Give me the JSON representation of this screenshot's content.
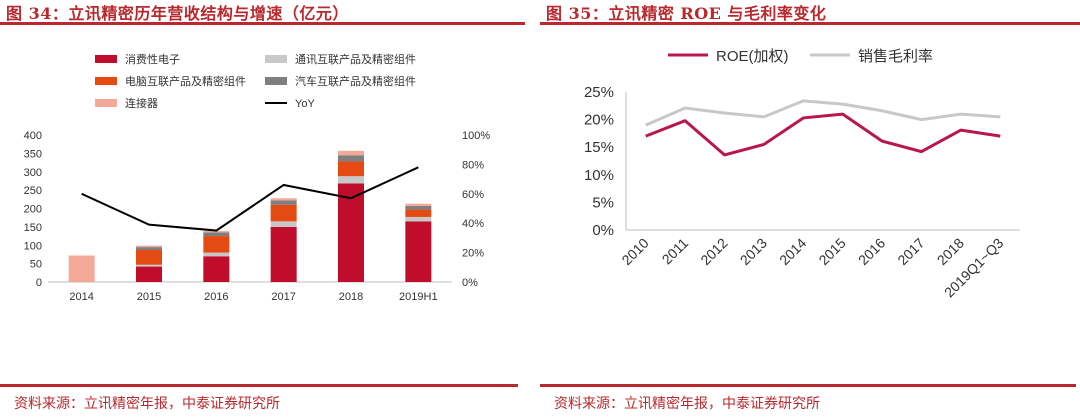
{
  "left": {
    "title": "图 34：立讯精密历年营收结构与增速（亿元）",
    "source": "资料来源：立讯精密年报，中泰证券研究所",
    "chart_data": {
      "type": "bar",
      "stacked": true,
      "categories": [
        "2014",
        "2015",
        "2016",
        "2017",
        "2018",
        "2019H1"
      ],
      "series": [
        {
          "name": "消费性电子",
          "color": "#c00d2b",
          "values": [
            0,
            42,
            70,
            150,
            268,
            165
          ]
        },
        {
          "name": "通讯互联产品及精密组件",
          "color": "#c8c8c8",
          "values": [
            0,
            5,
            10,
            15,
            20,
            12
          ]
        },
        {
          "name": "电脑互联产品及精密组件",
          "color": "#e44a12",
          "values": [
            0,
            40,
            45,
            45,
            40,
            20
          ]
        },
        {
          "name": "汽车互联产品及精密组件",
          "color": "#7f7f7f",
          "values": [
            0,
            8,
            10,
            12,
            17,
            10
          ]
        },
        {
          "name": "连接器",
          "color": "#f4a898",
          "values": [
            72,
            4,
            4,
            6,
            12,
            6
          ]
        }
      ],
      "line": {
        "name": "YoY",
        "color": "#000000",
        "values": [
          60,
          39,
          35,
          66,
          57,
          78
        ]
      },
      "ylim": [
        0,
        400
      ],
      "yticks": [
        "0",
        "50",
        "100",
        "150",
        "200",
        "250",
        "300",
        "350",
        "400"
      ],
      "y2lim": [
        0,
        100
      ],
      "y2ticks": [
        "0%",
        "20%",
        "40%",
        "60%",
        "80%",
        "100%"
      ],
      "legend": "top"
    }
  },
  "right": {
    "title": "图 35：立讯精密 ROE 与毛利率变化",
    "source": "资料来源：立讯精密年报，中泰证券研究所",
    "chart_data": {
      "type": "line",
      "categories": [
        "2010",
        "2011",
        "2012",
        "2013",
        "2014",
        "2015",
        "2016",
        "2017",
        "2018",
        "2019Q1~Q3"
      ],
      "series": [
        {
          "name": "ROE(加权)",
          "color": "#b8174b",
          "values": [
            17.0,
            19.8,
            13.6,
            15.5,
            20.3,
            21.0,
            16.1,
            14.2,
            18.1,
            17.0
          ]
        },
        {
          "name": "销售毛利率",
          "color": "#c8c8c8",
          "values": [
            19.0,
            22.1,
            21.2,
            20.5,
            23.4,
            22.8,
            21.6,
            20.0,
            21.0,
            20.5
          ]
        }
      ],
      "ylim": [
        0,
        25
      ],
      "yticks": [
        "0%",
        "5%",
        "10%",
        "15%",
        "20%",
        "25%"
      ],
      "legend": "top"
    }
  }
}
